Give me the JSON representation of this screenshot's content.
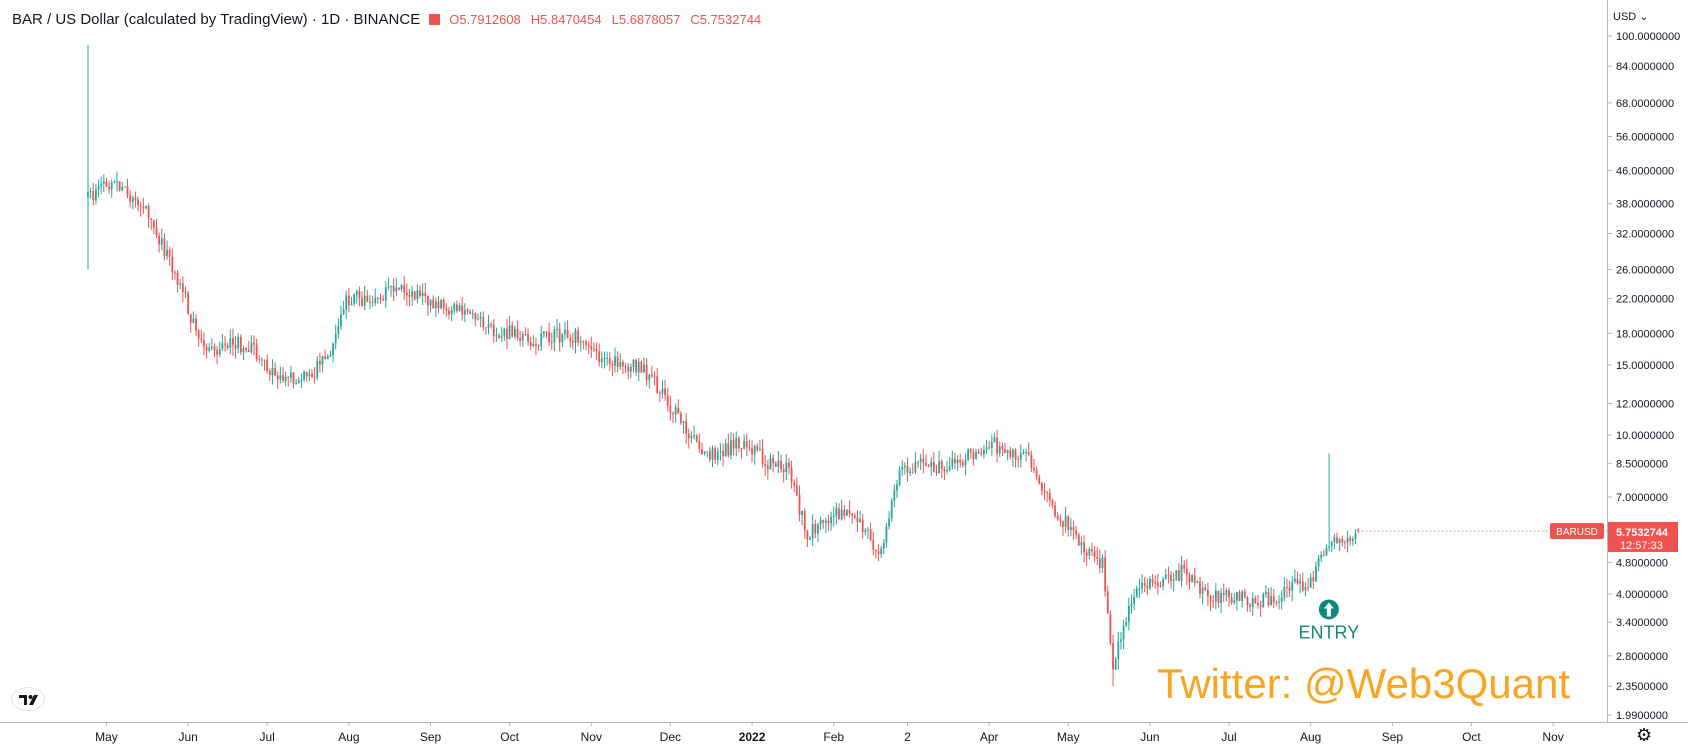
{
  "header": {
    "symbol_title": "BAR / US Dollar (calculated by TradingView) · 1D · BINANCE",
    "ohlc": {
      "open_label": "O",
      "open": "5.7912608",
      "high_label": "H",
      "high": "5.8470454",
      "low_label": "L",
      "low": "5.6878057",
      "close_label": "C",
      "close": "5.7532744"
    }
  },
  "price_axis": {
    "currency": "USD",
    "ticks": [
      "100.0000000",
      "84.0000000",
      "68.0000000",
      "56.0000000",
      "46.0000000",
      "38.0000000",
      "32.0000000",
      "26.0000000",
      "22.0000000",
      "18.0000000",
      "15.0000000",
      "12.0000000",
      "10.0000000",
      "8.5000000",
      "7.0000000",
      "4.8000000",
      "4.0000000",
      "3.4000000",
      "2.8000000",
      "2.3500000",
      "1.9900000"
    ]
  },
  "last_price": {
    "symbol_label": "BARUSD",
    "price": "5.7532744",
    "countdown": "12:57:33",
    "color": "#ef5350"
  },
  "time_axis": {
    "labels": [
      "May",
      "Jun",
      "Jul",
      "Aug",
      "Sep",
      "Oct",
      "Nov",
      "Dec",
      "2022",
      "Feb",
      "2",
      "Apr",
      "May",
      "Jun",
      "Jul",
      "Aug",
      "Sep",
      "Oct",
      "Nov"
    ]
  },
  "annotation": {
    "label": "ENTRY",
    "color": "#0e8a7a"
  },
  "watermark": "Twitter: @Web3Quant",
  "colors": {
    "up": "#26a69a",
    "down": "#ef5350",
    "accent_watermark": "#f7a523"
  },
  "icons": {
    "logo": "tradingview-logo-icon",
    "settings": "gear-icon",
    "entry": "arrow-up-circle-icon"
  },
  "chart_data": {
    "type": "candlestick",
    "title": "BAR / US Dollar (calculated by TradingView) · 1D · BINANCE",
    "scale": "log",
    "ylim": [
      1.99,
      100
    ],
    "x_range": [
      "2021-04-24",
      "2022-11-15"
    ],
    "x_tick_labels": [
      "May",
      "Jun",
      "Jul",
      "Aug",
      "Sep",
      "Oct",
      "Nov",
      "Dec",
      "2022",
      "Feb",
      "2",
      "Apr",
      "May",
      "Jun",
      "Jul",
      "Aug",
      "Sep",
      "Oct",
      "Nov"
    ],
    "y_tick_labels": [
      "100.0000000",
      "84.0000000",
      "68.0000000",
      "56.0000000",
      "46.0000000",
      "38.0000000",
      "32.0000000",
      "26.0000000",
      "22.0000000",
      "18.0000000",
      "15.0000000",
      "12.0000000",
      "10.0000000",
      "8.5000000",
      "7.0000000",
      "4.8000000",
      "4.0000000",
      "3.4000000",
      "2.8000000",
      "2.3500000",
      "1.9900000"
    ],
    "close_path": [
      [
        "2021-04-24",
        39
      ],
      [
        "2021-05-01",
        42
      ],
      [
        "2021-05-08",
        41
      ],
      [
        "2021-05-15",
        37
      ],
      [
        "2021-05-22",
        30
      ],
      [
        "2021-05-29",
        24
      ],
      [
        "2021-06-05",
        17
      ],
      [
        "2021-06-12",
        16.5
      ],
      [
        "2021-06-19",
        17
      ],
      [
        "2021-06-26",
        16.5
      ],
      [
        "2021-07-03",
        14.2
      ],
      [
        "2021-07-10",
        14
      ],
      [
        "2021-07-17",
        14.2
      ],
      [
        "2021-07-24",
        15.5
      ],
      [
        "2021-07-31",
        22
      ],
      [
        "2021-08-07",
        22
      ],
      [
        "2021-08-14",
        22.5
      ],
      [
        "2021-08-21",
        24
      ],
      [
        "2021-08-28",
        22
      ],
      [
        "2021-09-04",
        21
      ],
      [
        "2021-09-11",
        20.5
      ],
      [
        "2021-09-18",
        19.5
      ],
      [
        "2021-09-25",
        18.5
      ],
      [
        "2021-10-02",
        18
      ],
      [
        "2021-10-09",
        17.5
      ],
      [
        "2021-10-16",
        17.5
      ],
      [
        "2021-10-23",
        18
      ],
      [
        "2021-10-30",
        17
      ],
      [
        "2021-11-06",
        15.5
      ],
      [
        "2021-11-13",
        15
      ],
      [
        "2021-11-20",
        15
      ],
      [
        "2021-11-27",
        13
      ],
      [
        "2021-12-04",
        11
      ],
      [
        "2021-12-11",
        9.5
      ],
      [
        "2021-12-18",
        8.8
      ],
      [
        "2021-12-25",
        9.5
      ],
      [
        "2022-01-01",
        9.2
      ],
      [
        "2022-01-08",
        8.5
      ],
      [
        "2022-01-15",
        8.2
      ],
      [
        "2022-01-22",
        5.6
      ],
      [
        "2022-01-29",
        6.1
      ],
      [
        "2022-02-05",
        6.5
      ],
      [
        "2022-02-12",
        5.8
      ],
      [
        "2022-02-19",
        5.1
      ],
      [
        "2022-02-26",
        8.2
      ],
      [
        "2022-03-05",
        8.5
      ],
      [
        "2022-03-12",
        8.3
      ],
      [
        "2022-03-19",
        8.5
      ],
      [
        "2022-03-26",
        9
      ],
      [
        "2022-04-02",
        9.6
      ],
      [
        "2022-04-09",
        9
      ],
      [
        "2022-04-16",
        8.8
      ],
      [
        "2022-04-23",
        7
      ],
      [
        "2022-04-30",
        6
      ],
      [
        "2022-05-07",
        5.2
      ],
      [
        "2022-05-14",
        4.8
      ],
      [
        "2022-05-18",
        2.6
      ],
      [
        "2022-05-24",
        3.8
      ],
      [
        "2022-05-31",
        4.2
      ],
      [
        "2022-06-07",
        4.3
      ],
      [
        "2022-06-14",
        4.6
      ],
      [
        "2022-06-21",
        4
      ],
      [
        "2022-06-28",
        3.9
      ],
      [
        "2022-07-05",
        3.95
      ],
      [
        "2022-07-12",
        3.85
      ],
      [
        "2022-07-19",
        3.95
      ],
      [
        "2022-07-26",
        4.2
      ],
      [
        "2022-08-02",
        4.3
      ],
      [
        "2022-08-05",
        5.1
      ],
      [
        "2022-08-08",
        5.5
      ],
      [
        "2022-08-15",
        5.6
      ],
      [
        "2022-08-19",
        5.75
      ]
    ],
    "notable_values": {
      "all_time_high": 95,
      "local_low_2022_05": 2.35,
      "spike_2022_08": 9.0
    },
    "last": {
      "open": 5.7912608,
      "high": 5.8470454,
      "low": 5.6878057,
      "close": 5.7532744
    },
    "annotations": [
      {
        "text": "ENTRY",
        "date": "2022-07-26",
        "price": 4.3
      }
    ]
  }
}
